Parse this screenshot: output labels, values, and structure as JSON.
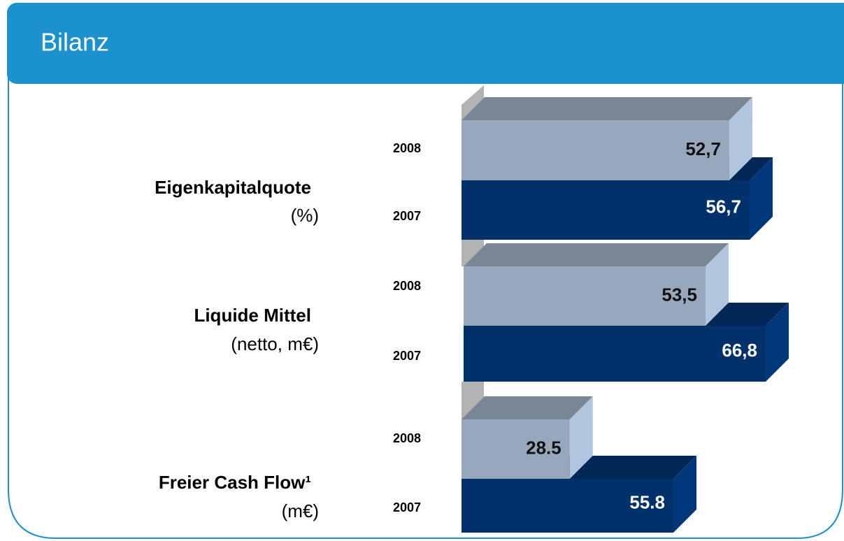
{
  "page_title": "Bilanz",
  "chart_data": [
    {
      "type": "bar3d",
      "title": "Eigenkapitalquote",
      "subtitle": "(%)",
      "categories": [
        "2008",
        "2007"
      ],
      "values": [
        52.7,
        56.7
      ],
      "value_labels": [
        "52,7",
        "56,7"
      ],
      "colors": [
        "#97a7bc",
        "#00316b"
      ]
    },
    {
      "type": "bar3d",
      "title": "Liquide Mittel",
      "subtitle": "(netto, m€)",
      "categories": [
        "2008",
        "2007"
      ],
      "values": [
        53.5,
        66.8
      ],
      "value_labels": [
        "53,5",
        "66,8"
      ],
      "colors": [
        "#97a7bc",
        "#00316b"
      ]
    },
    {
      "type": "bar3d",
      "title": "Freier Cash Flow¹",
      "subtitle": "(m€)",
      "categories": [
        "2008",
        "2007"
      ],
      "values": [
        28.5,
        55.8
      ],
      "colors": [
        "#97a7bc",
        "#00316b"
      ]
    }
  ]
}
